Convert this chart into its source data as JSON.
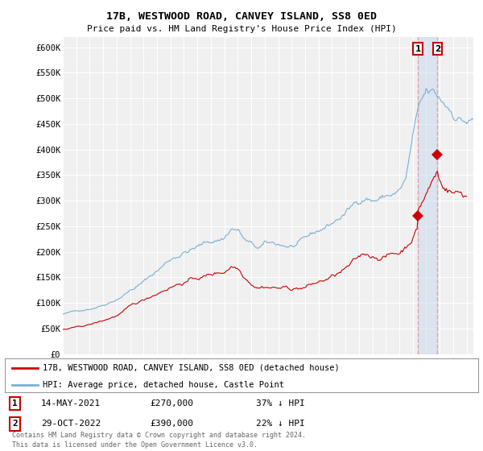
{
  "title": "17B, WESTWOOD ROAD, CANVEY ISLAND, SS8 0ED",
  "subtitle": "Price paid vs. HM Land Registry's House Price Index (HPI)",
  "ylim": [
    0,
    620000
  ],
  "yticks": [
    0,
    50000,
    100000,
    150000,
    200000,
    250000,
    300000,
    350000,
    400000,
    450000,
    500000,
    550000,
    600000
  ],
  "ytick_labels": [
    "£0",
    "£50K",
    "£100K",
    "£150K",
    "£200K",
    "£250K",
    "£300K",
    "£350K",
    "£400K",
    "£450K",
    "£500K",
    "£550K",
    "£600K"
  ],
  "hpi_color": "#7bafd4",
  "price_color": "#cc0000",
  "vline_color": "#e8a0a0",
  "marker1_date": 2021.37,
  "marker1_price": 270000,
  "marker1_label": "14-MAY-2021",
  "marker1_amount": "£270,000",
  "marker1_pct": "37% ↓ HPI",
  "marker2_date": 2022.83,
  "marker2_price": 390000,
  "marker2_label": "29-OCT-2022",
  "marker2_amount": "£390,000",
  "marker2_pct": "22% ↓ HPI",
  "legend_line1": "17B, WESTWOOD ROAD, CANVEY ISLAND, SS8 0ED (detached house)",
  "legend_line2": "HPI: Average price, detached house, Castle Point",
  "footer": "Contains HM Land Registry data © Crown copyright and database right 2024.\nThis data is licensed under the Open Government Licence v3.0.",
  "bg_color": "#ffffff",
  "plot_bg_color": "#f0f0f0",
  "grid_color": "#ffffff"
}
